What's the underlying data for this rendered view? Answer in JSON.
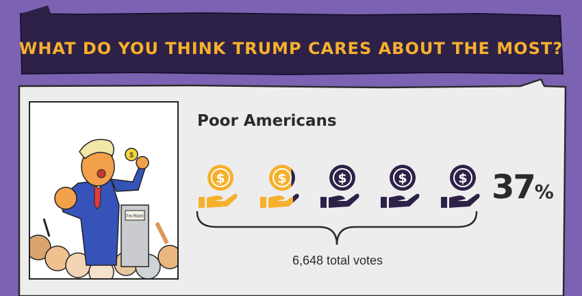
{
  "poll": {
    "title": "WHAT DO YOU THINK TRUMP CARES ABOUT THE MOST?",
    "option": "Poor Americans",
    "percent_value": "37",
    "percent_symbol": "%",
    "share": 0.37,
    "total_votes": "6,648 total votes",
    "sign_text": "I'm Rich!",
    "icons": [
      "coin-hand-icon",
      "coin-hand-icon",
      "coin-hand-icon",
      "coin-hand-icon",
      "coin-hand-icon"
    ]
  },
  "colors": {
    "background": "#7b62b2",
    "banner": "#2e2148",
    "title": "#f6b02c",
    "panel": "#ededed",
    "filled_icon": "#f6b02c",
    "empty_icon": "#2e2148"
  }
}
